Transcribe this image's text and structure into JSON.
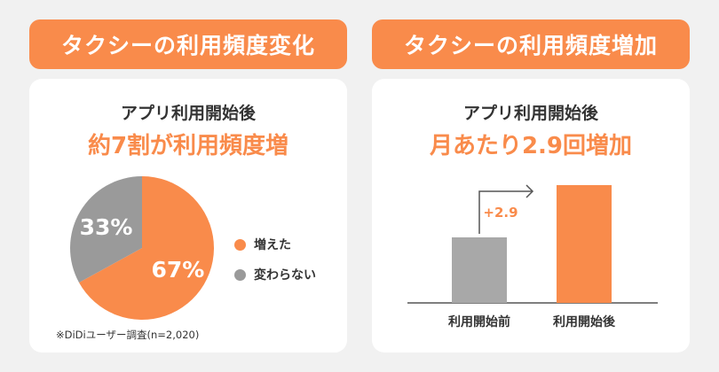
{
  "left": {
    "header": "タクシーの利用頻度変化",
    "title": "アプリ利用開始後",
    "headline": "約7割が利用頻度増",
    "footnote": "※DiDiユーザー調査(n=2,020)"
  },
  "right": {
    "header": "タクシーの利用頻度増加",
    "title": "アプリ利用開始後",
    "headline": "月あたり2.9回増加"
  },
  "colors": {
    "accent": "#f98b4b",
    "gray": "#9a9a9a",
    "background": "#f1f1f1"
  },
  "chart_data": [
    {
      "type": "pie",
      "slices": [
        {
          "label": "増えた",
          "value": 67,
          "display": "67%",
          "color": "#f98b4b"
        },
        {
          "label": "変わらない",
          "value": 33,
          "display": "33%",
          "color": "#9a9a9a"
        }
      ]
    },
    {
      "type": "bar",
      "categories": [
        "利用開始前",
        "利用開始後"
      ],
      "colors": [
        "#a8a8a8",
        "#f98b4b"
      ],
      "difference_label": "+2.9"
    }
  ]
}
